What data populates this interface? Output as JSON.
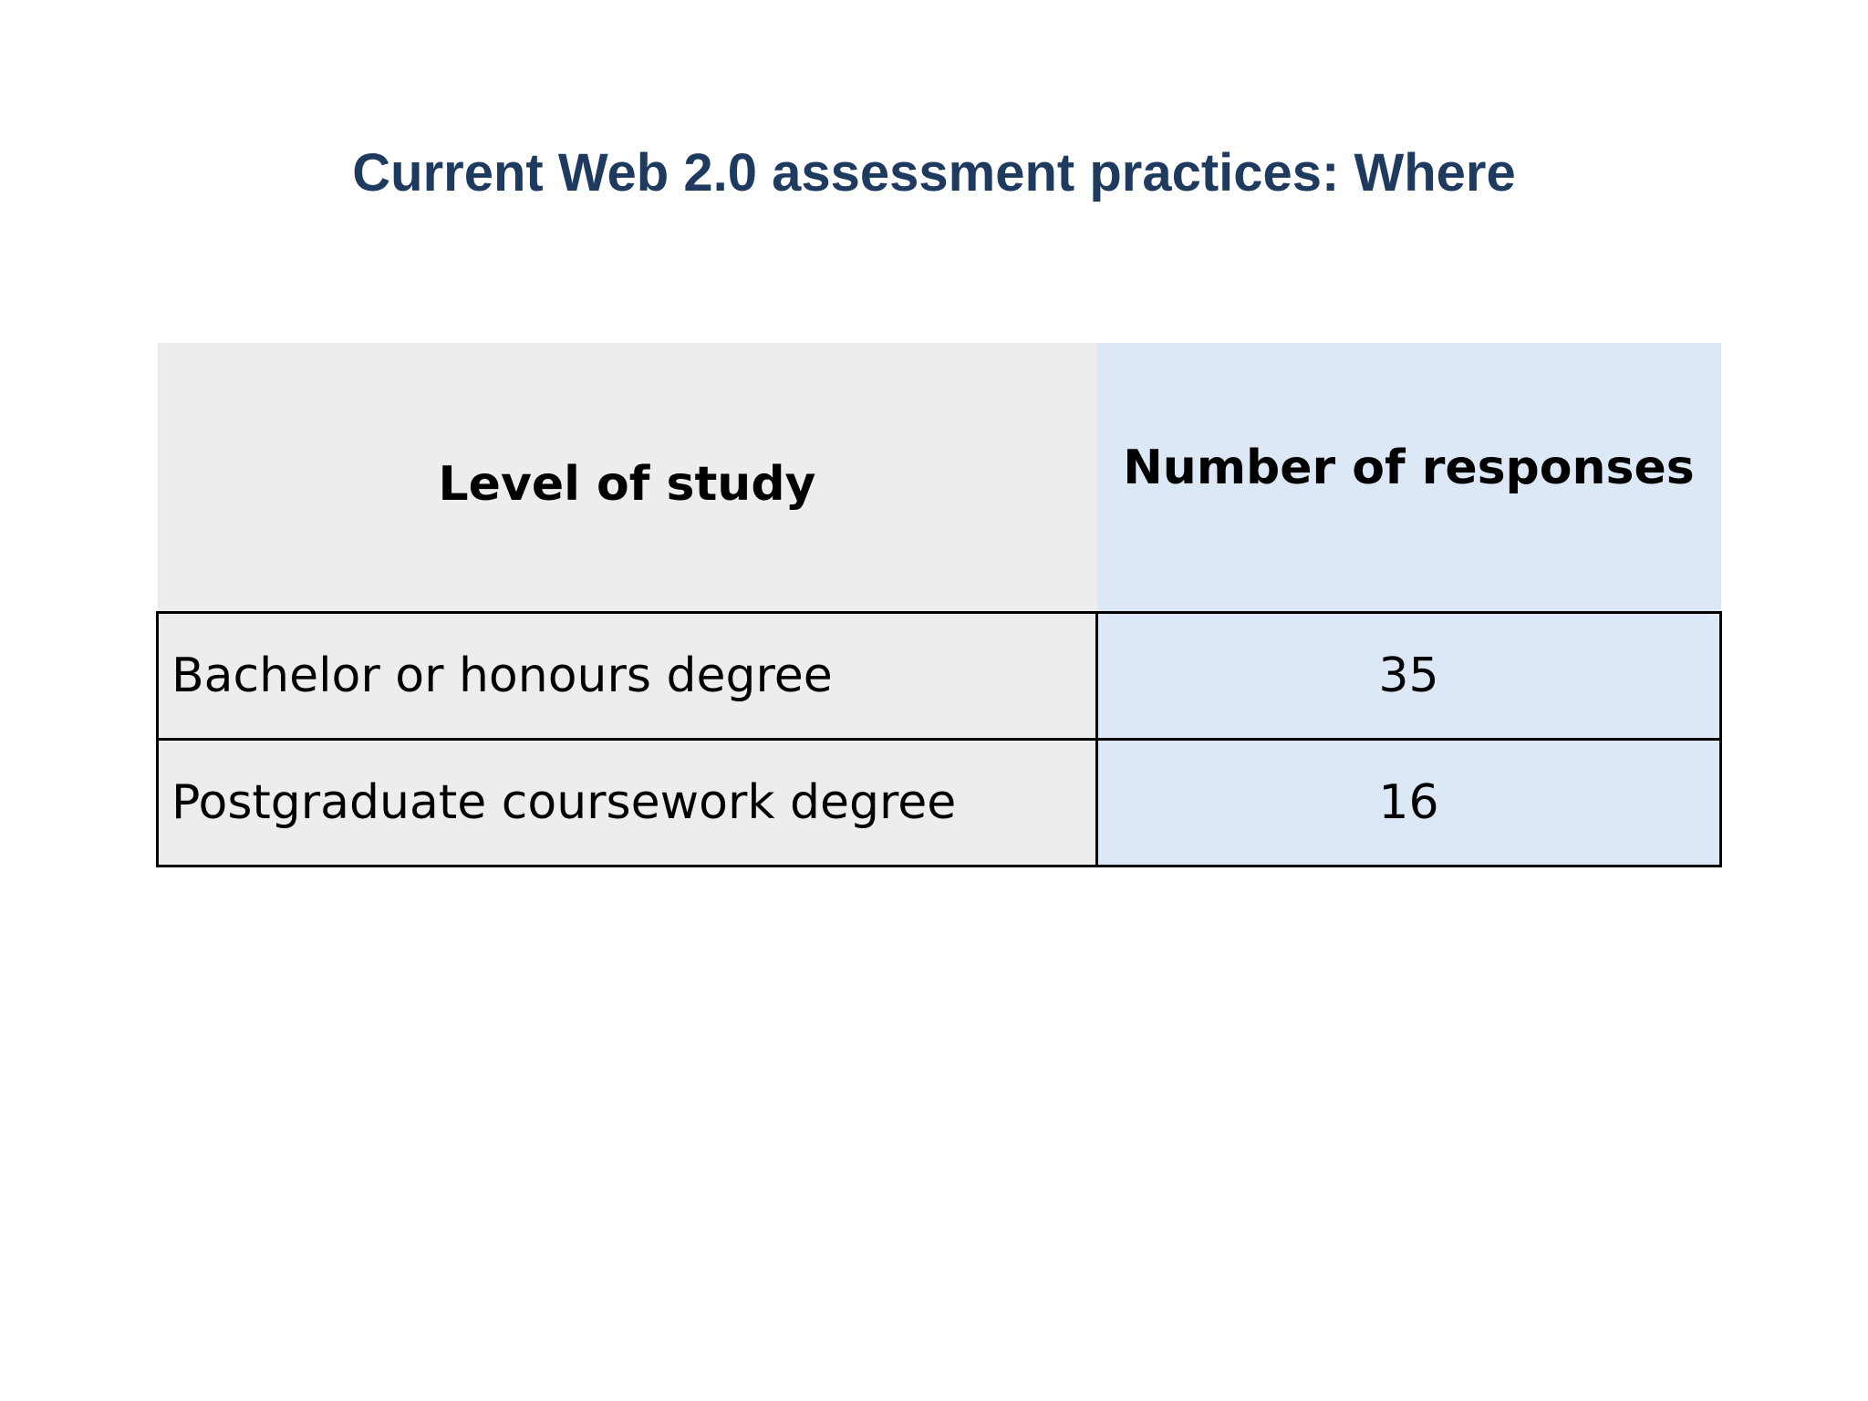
{
  "slide": {
    "title": "Current Web 2.0 assessment practices: Where"
  },
  "table": {
    "headers": {
      "level": "Level of study",
      "count": "Number of responses"
    },
    "rows": [
      {
        "level": "Bachelor or honours degree",
        "count": "35"
      },
      {
        "level": "Postgraduate coursework degree",
        "count": "16"
      }
    ]
  },
  "colors": {
    "title": "#1f3a5f",
    "level_column_bg": "#eeecee",
    "count_column_bg": "#dde8f6"
  }
}
